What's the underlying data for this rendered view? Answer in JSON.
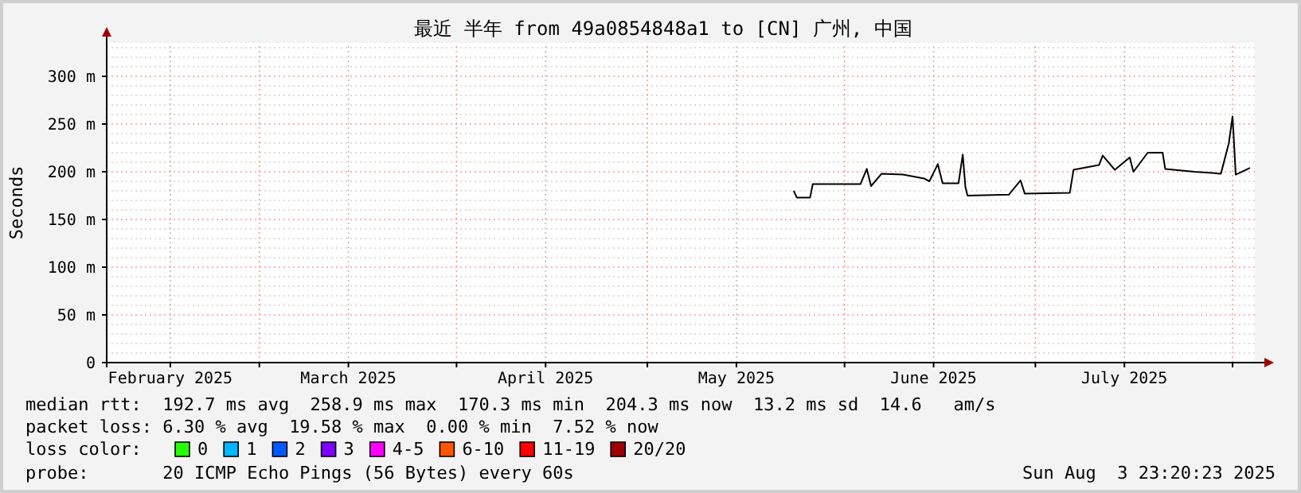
{
  "chart_data": {
    "type": "line",
    "title": "最近 半年 from 49a0854848a1 to [CN] 广州, 中国",
    "ylabel": "Seconds",
    "xlim": [
      "2025-02-05",
      "2025-08-04T12:00"
    ],
    "xticks": [
      {
        "value": "2025-02-15",
        "label": "February 2025"
      },
      {
        "value": "2025-03-01",
        "label": null
      },
      {
        "value": "2025-03-15",
        "label": "March 2025"
      },
      {
        "value": "2025-04-01",
        "label": null
      },
      {
        "value": "2025-04-15",
        "label": "April 2025"
      },
      {
        "value": "2025-05-01",
        "label": null
      },
      {
        "value": "2025-05-15",
        "label": "May 2025"
      },
      {
        "value": "2025-06-01",
        "label": null
      },
      {
        "value": "2025-06-15",
        "label": "June 2025"
      },
      {
        "value": "2025-07-01",
        "label": null
      },
      {
        "value": "2025-07-15",
        "label": "July 2025"
      },
      {
        "value": "2025-08-01",
        "label": null
      }
    ],
    "ylim": [
      0,
      335
    ],
    "yticks": [
      0,
      {
        "value": 50,
        "label": "50 m"
      },
      {
        "value": 100,
        "label": "100 m"
      },
      {
        "value": 150,
        "label": "150 m"
      },
      {
        "value": 200,
        "label": "200 m"
      },
      {
        "value": 250,
        "label": "250 m"
      },
      {
        "value": 300,
        "label": "300 m"
      }
    ],
    "grid": true,
    "legend": "bottom",
    "line_style": "solid",
    "marker": "none",
    "series": [
      {
        "color": "#000000",
        "x": [
          "2025-05-24",
          "2025-05-24T12:00",
          "2025-05-26T14:00",
          "2025-05-27",
          "2025-06-03T12:00",
          "2025-06-04T12:00",
          "2025-06-05T04:00",
          "2025-06-06T20:00",
          "2025-06-10T04:00",
          "2025-06-13T12:00",
          "2025-06-14T08:00",
          "2025-06-15T16:00",
          "2025-06-16T10:00",
          "2025-06-18T22:00",
          "2025-06-19T14:00",
          "2025-06-20",
          "2025-06-20T08:00",
          "2025-06-26T20:00",
          "2025-06-28T16:00",
          "2025-06-29T08:00",
          "2025-07-06T10:00",
          "2025-07-07",
          "2025-07-11",
          "2025-07-11T14:00",
          "2025-07-13T12:00",
          "2025-07-15T20:00",
          "2025-07-16T10:00",
          "2025-07-18T16:00",
          "2025-07-21",
          "2025-07-21T10:00",
          "2025-07-26",
          "2025-07-30T04:00",
          "2025-07-31T10:00",
          "2025-08-01",
          "2025-08-01T12:00",
          "2025-08-03T18:00"
        ],
        "values": [
          180,
          173,
          173,
          187,
          187,
          203,
          185,
          198,
          197,
          193,
          190,
          208,
          188,
          188,
          218,
          184,
          175,
          176,
          191,
          177,
          178,
          202,
          207,
          217,
          202,
          215,
          200,
          220,
          220,
          203,
          200,
          198,
          230,
          258,
          197,
          204
        ]
      },
      {
        "name": "0",
        "color": "#26ff00"
      },
      {
        "name": "1",
        "color": "#00b8ff"
      },
      {
        "name": "2",
        "color": "#0059ff"
      },
      {
        "name": "3",
        "color": "#7e00ff"
      },
      {
        "name": "4-5",
        "color": "#ff00ff"
      },
      {
        "name": "6-10",
        "color": "#ff5500"
      },
      {
        "name": "11-19",
        "color": "#ff0000"
      },
      {
        "name": "20/20",
        "color": "#a10000"
      }
    ],
    "annotations": [
      "median rtt:  192.7 ms avg  258.9 ms max  170.3 ms min  204.3 ms now  13.2 ms sd  14.6   am/s",
      "packet loss: 6.30 % avg  19.58 % max  0.00 % min  7.52 % now",
      "loss color:",
      "probe:       20 ICMP Echo Pings (56 Bytes) every 60s",
      "Sun Aug  3 23:20:23 2025"
    ]
  }
}
